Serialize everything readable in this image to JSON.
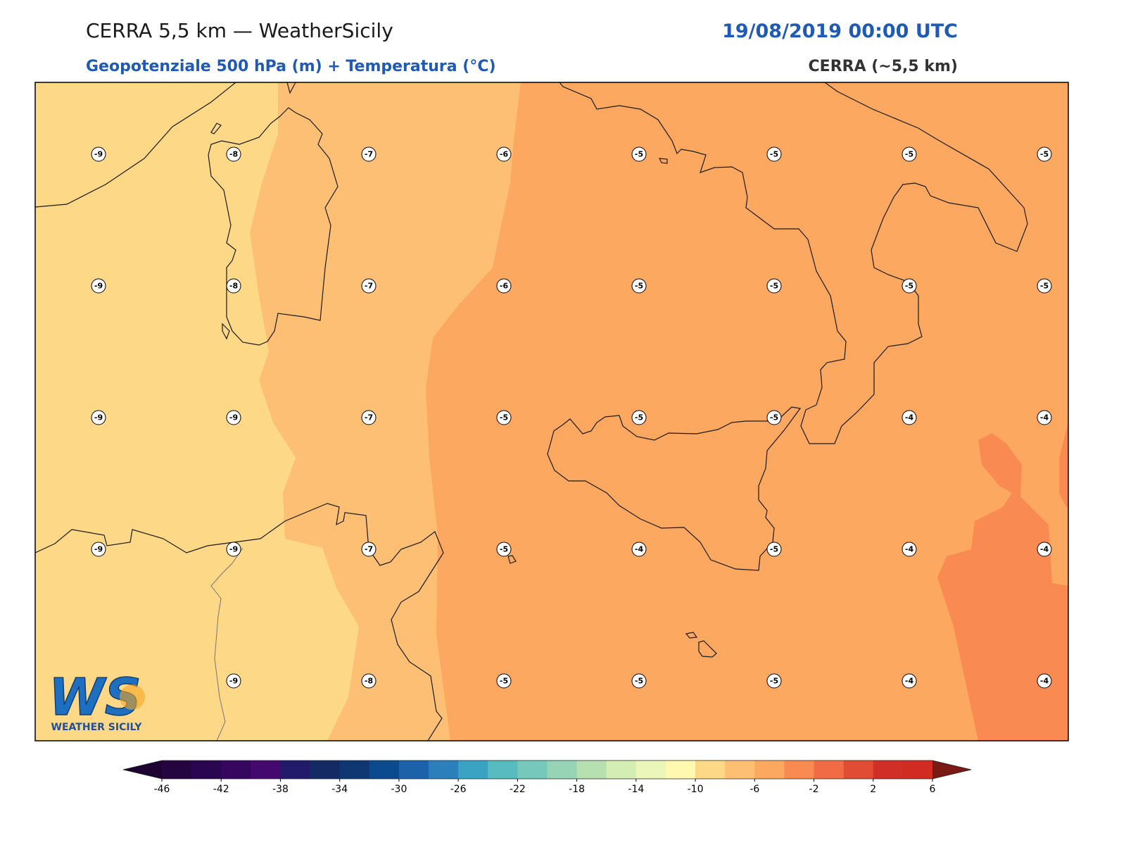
{
  "header": {
    "title": "CERRA 5,5 km — WeatherSicily",
    "subtitle": "Geopotenziale 500 hPa (m) + Temperatura (°C)",
    "datetime": "19/08/2019 00:00 UTC",
    "model": "CERRA (~5,5 km)"
  },
  "map": {
    "labels": [
      [
        -9,
        -8,
        -7,
        -6,
        -5,
        -5,
        -5,
        -5
      ],
      [
        -9,
        -8,
        -7,
        -6,
        -5,
        -5,
        -5,
        -5
      ],
      [
        -9,
        -9,
        -7,
        -5,
        -5,
        -5,
        -4,
        -4
      ],
      [
        -9,
        -9,
        -7,
        -5,
        -4,
        -5,
        -4,
        -4
      ],
      [
        null,
        -9,
        -8,
        -5,
        -5,
        -5,
        -4,
        -4
      ]
    ]
  },
  "colorbar": {
    "ticks": [
      -46,
      -42,
      -38,
      -34,
      -30,
      -26,
      -22,
      -18,
      -14,
      -10,
      -6,
      -2,
      2,
      6
    ],
    "colors": [
      "#24053f",
      "#2a0650",
      "#36075e",
      "#44096f",
      "#221a6a",
      "#142a64",
      "#0f3872",
      "#0b4a8e",
      "#1b62aa",
      "#2b80bb",
      "#3aa2c3",
      "#57bbbf",
      "#75c8bb",
      "#97d4b5",
      "#b6e0af",
      "#d4edb3",
      "#ebf6bb",
      "#fef8b0",
      "#fdd886",
      "#fdbf74",
      "#fca860",
      "#f98b52",
      "#f16c45",
      "#e04c34",
      "#d12e27",
      "#d22b22"
    ],
    "under": "#1e0432",
    "over": "#7b1a14"
  },
  "logo": {
    "mark": "WS",
    "text": "WEATHER SICILY"
  }
}
